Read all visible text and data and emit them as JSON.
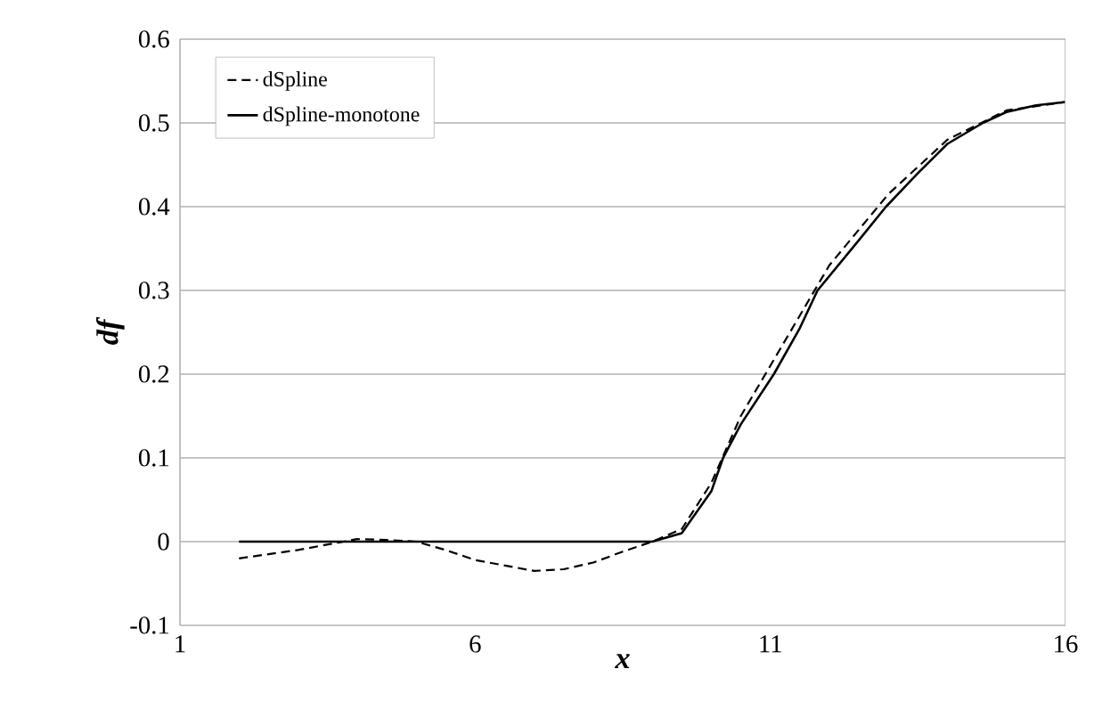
{
  "chart_data": {
    "type": "line",
    "xlabel": "x",
    "ylabel": "df",
    "xlim": [
      1,
      16
    ],
    "xticks": [
      1,
      6,
      11,
      16
    ],
    "ylim": [
      -0.1,
      0.6
    ],
    "yticks": [
      -0.1,
      0,
      0.1,
      0.2,
      0.3,
      0.4,
      0.5,
      0.6
    ],
    "grid": "y",
    "legend": "top left",
    "marker": "none",
    "series": [
      {
        "name": "dSpline",
        "color": "#000000",
        "line_style": "dashed",
        "x": [
          2,
          3,
          4,
          4.5,
          5,
          5.5,
          6,
          7,
          7.5,
          8,
          8.5,
          9,
          9.5,
          10,
          10.5,
          11,
          11.5,
          12,
          13,
          14,
          15,
          16
        ],
        "values": [
          -0.02,
          -0.01,
          0.003,
          0.002,
          0,
          -0.01,
          -0.022,
          -0.035,
          -0.033,
          -0.025,
          -0.012,
          0,
          0.015,
          0.07,
          0.15,
          0.21,
          0.27,
          0.33,
          0.415,
          0.48,
          0.515,
          0.525
        ]
      },
      {
        "name": "dSpline-monotone",
        "color": "#000000",
        "line_style": "solid",
        "x": [
          2,
          3,
          4,
          5,
          6,
          7,
          8,
          9,
          9.5,
          10,
          10.2,
          10.5,
          11.06,
          11.5,
          11.8,
          12.5,
          12.96,
          13.5,
          14,
          14.6,
          15,
          15.5,
          16
        ],
        "values": [
          0,
          0,
          0,
          0,
          0,
          0,
          0,
          0,
          0.01,
          0.06,
          0.1,
          0.14,
          0.2,
          0.255,
          0.3,
          0.36,
          0.4,
          0.44,
          0.475,
          0.5,
          0.513,
          0.521,
          0.525
        ]
      }
    ]
  }
}
